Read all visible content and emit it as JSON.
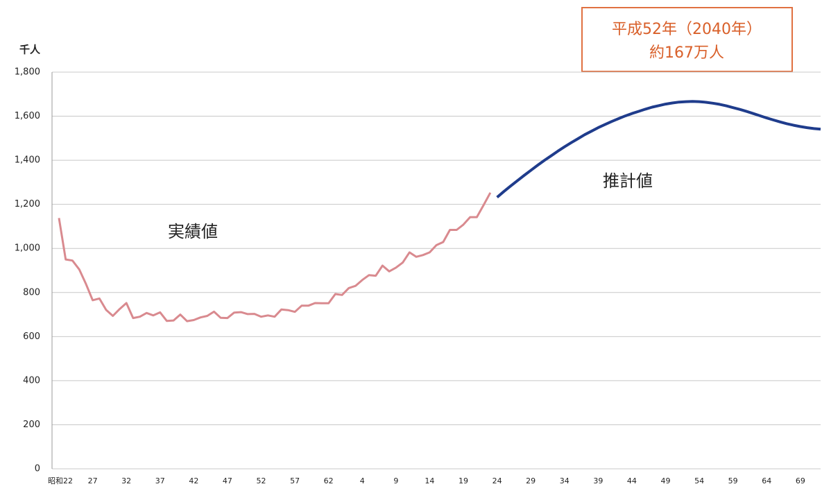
{
  "chart_data": {
    "type": "line",
    "y_unit": "千人",
    "annotation": [
      "平成52年（2040年）",
      "約167万人"
    ],
    "categories": [
      "昭和22",
      null,
      null,
      null,
      null,
      "27",
      null,
      null,
      null,
      null,
      "32",
      null,
      null,
      null,
      null,
      "37",
      null,
      null,
      null,
      null,
      "42",
      null,
      null,
      null,
      null,
      "47",
      null,
      null,
      null,
      null,
      "52",
      null,
      null,
      null,
      null,
      "57",
      null,
      null,
      null,
      null,
      "62",
      null,
      null,
      null,
      null,
      "4",
      null,
      null,
      null,
      null,
      "9",
      null,
      null,
      null,
      null,
      "14",
      null,
      null,
      null,
      null,
      "19",
      null,
      null,
      null,
      null,
      "24",
      null,
      null,
      null,
      null,
      "29",
      null,
      null,
      null,
      null,
      "34",
      null,
      null,
      null,
      null,
      "39",
      null,
      null,
      null,
      null,
      "44",
      null,
      null,
      null,
      null,
      "49",
      null,
      null,
      null,
      null,
      "54",
      null,
      null,
      null,
      null,
      "59",
      null,
      null,
      null,
      null,
      "64",
      null,
      null,
      null,
      null,
      "69",
      null,
      null,
      null
    ],
    "series": [
      {
        "name": "実績値",
        "color": "#d98a8f",
        "values": [
          1138,
          950,
          945,
          905,
          839,
          765,
          773,
          721,
          694,
          725,
          752,
          684,
          690,
          707,
          696,
          710,
          671,
          673,
          700,
          670,
          675,
          687,
          694,
          713,
          685,
          684,
          709,
          711,
          702,
          703,
          690,
          696,
          690,
          723,
          720,
          712,
          740,
          740,
          752,
          751,
          751,
          793,
          789,
          820,
          830,
          857,
          879,
          876,
          922,
          896,
          913,
          936,
          982,
          962,
          970,
          982,
          1015,
          1029,
          1084,
          1084,
          1108,
          1142,
          1142,
          1197,
          1253,
          null,
          null,
          null,
          null,
          null,
          null,
          null,
          null,
          null,
          null,
          null,
          null,
          null,
          null,
          null,
          null,
          null,
          null,
          null,
          null,
          null,
          null,
          null,
          null,
          null,
          null,
          null,
          null,
          null,
          null,
          null,
          null,
          null,
          null,
          null,
          null,
          null,
          null,
          null,
          null,
          null,
          null,
          null,
          null,
          null,
          null,
          null,
          null,
          null
        ]
      },
      {
        "name": "推計値",
        "color": "#1f3c8c",
        "values": [
          null,
          null,
          null,
          null,
          null,
          null,
          null,
          null,
          null,
          null,
          null,
          null,
          null,
          null,
          null,
          null,
          null,
          null,
          null,
          null,
          null,
          null,
          null,
          null,
          null,
          null,
          null,
          null,
          null,
          null,
          null,
          null,
          null,
          null,
          null,
          null,
          null,
          null,
          null,
          null,
          null,
          null,
          null,
          null,
          null,
          null,
          null,
          null,
          null,
          null,
          null,
          null,
          null,
          null,
          null,
          null,
          null,
          null,
          null,
          null,
          null,
          null,
          null,
          null,
          null,
          1232,
          1258,
          1283,
          1307,
          1331,
          1354,
          1377,
          1399,
          1420,
          1441,
          1461,
          1480,
          1498,
          1516,
          1532,
          1548,
          1562,
          1576,
          1589,
          1601,
          1612,
          1622,
          1632,
          1641,
          1648,
          1655,
          1660,
          1664,
          1666,
          1667,
          1666,
          1663,
          1659,
          1654,
          1647,
          1639,
          1631,
          1622,
          1612,
          1602,
          1592,
          1583,
          1574,
          1566,
          1559,
          1553,
          1548,
          1544,
          1541
        ]
      }
    ],
    "ylim": [
      0,
      1800
    ],
    "yticks": [
      0,
      200,
      400,
      600,
      800,
      {
        "value": 1000,
        "label": "1,000"
      },
      {
        "value": 1200,
        "label": "1,200"
      },
      {
        "value": 1400,
        "label": "1,400"
      },
      {
        "value": 1600,
        "label": "1,600"
      },
      {
        "value": 1800,
        "label": "1,800"
      }
    ],
    "grid": true
  }
}
